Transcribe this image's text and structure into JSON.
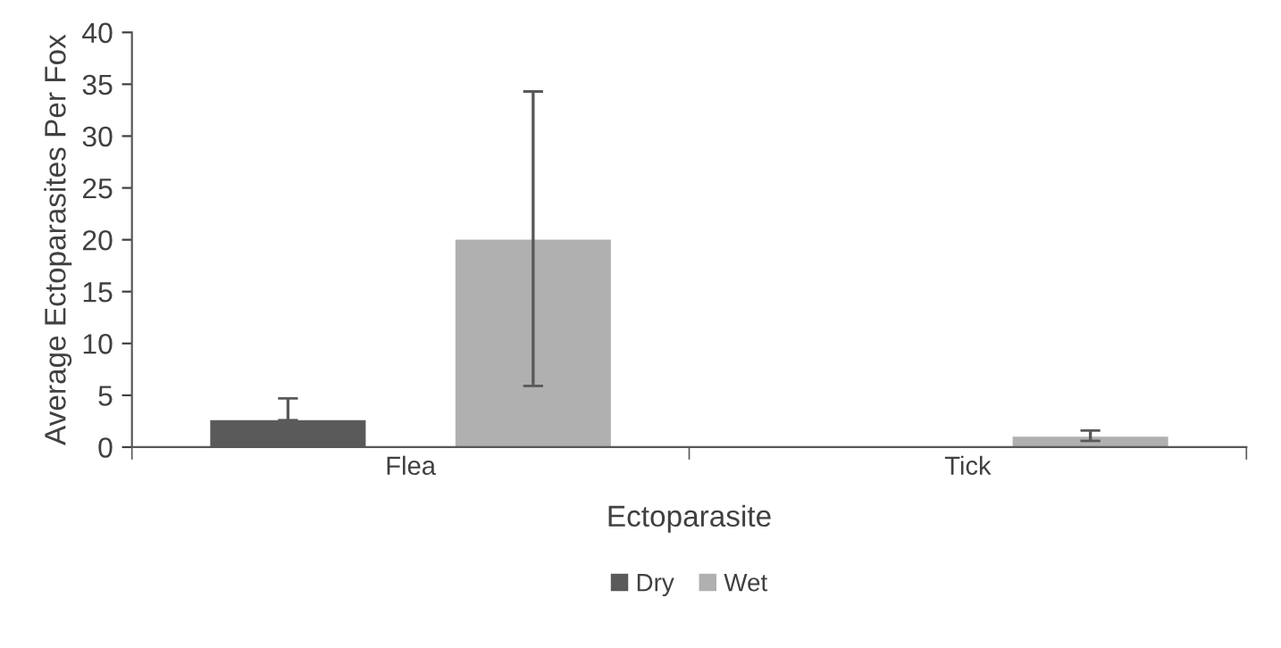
{
  "chart_data": {
    "type": "bar",
    "xlabel": "Ectoparasite",
    "ylabel": "Average Ectoparasites Per Fox",
    "categories": [
      "Flea",
      "Tick"
    ],
    "series": [
      {
        "name": "Dry",
        "color": "#5a5a5a",
        "values": [
          2.6,
          null
        ],
        "errors": [
          [
            2.6,
            4.7
          ],
          null
        ]
      },
      {
        "name": "Wet",
        "color": "#b0b0b0",
        "values": [
          20.0,
          1.0
        ],
        "errors": [
          [
            5.9,
            34.3
          ],
          [
            0.6,
            1.6
          ]
        ]
      }
    ],
    "ylim": [
      0,
      40
    ],
    "yticks": [
      0,
      5,
      10,
      15,
      20,
      25,
      30,
      35,
      40
    ],
    "grid": false,
    "legend": "bottom"
  }
}
